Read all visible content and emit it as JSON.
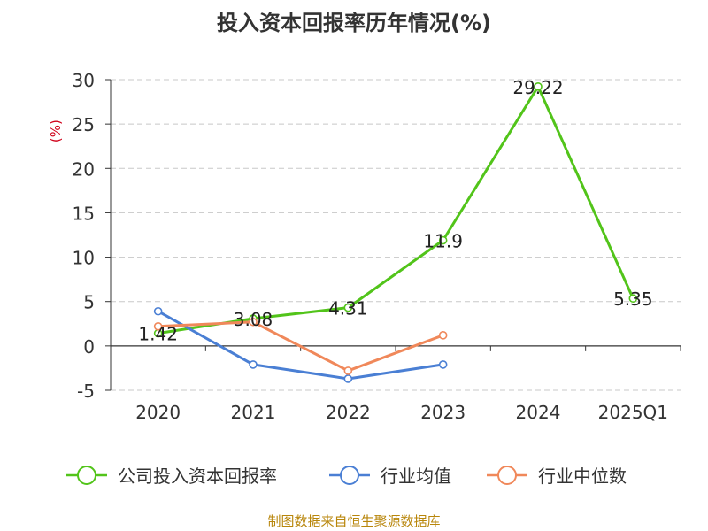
{
  "chart_data": {
    "type": "line",
    "title": "投入资本回报率历年情况(%)",
    "ylabel": "(%)",
    "xlabel": "",
    "categories": [
      "2020",
      "2021",
      "2022",
      "2023",
      "2024",
      "2025Q1"
    ],
    "ylim": [
      -5,
      30
    ],
    "yticks": [
      -5,
      0,
      5,
      10,
      15,
      20,
      25,
      30
    ],
    "grid": true,
    "legend_position": "bottom",
    "series": [
      {
        "name": "公司投入资本回报率",
        "color": "#52c41a",
        "values": [
          1.42,
          3.08,
          4.31,
          11.9,
          29.22,
          5.35
        ],
        "labels": [
          "1.42",
          "3.08",
          "4.31",
          "11.9",
          "29.22",
          "5.35"
        ]
      },
      {
        "name": "行业均值",
        "color": "#4a7fd4",
        "values": [
          3.9,
          -2.1,
          -3.7,
          -2.1,
          null,
          null
        ]
      },
      {
        "name": "行业中位数",
        "color": "#f0885a",
        "values": [
          2.2,
          2.7,
          -2.8,
          1.2,
          null,
          null
        ]
      }
    ],
    "source": "制图数据来自恒生聚源数据库"
  }
}
